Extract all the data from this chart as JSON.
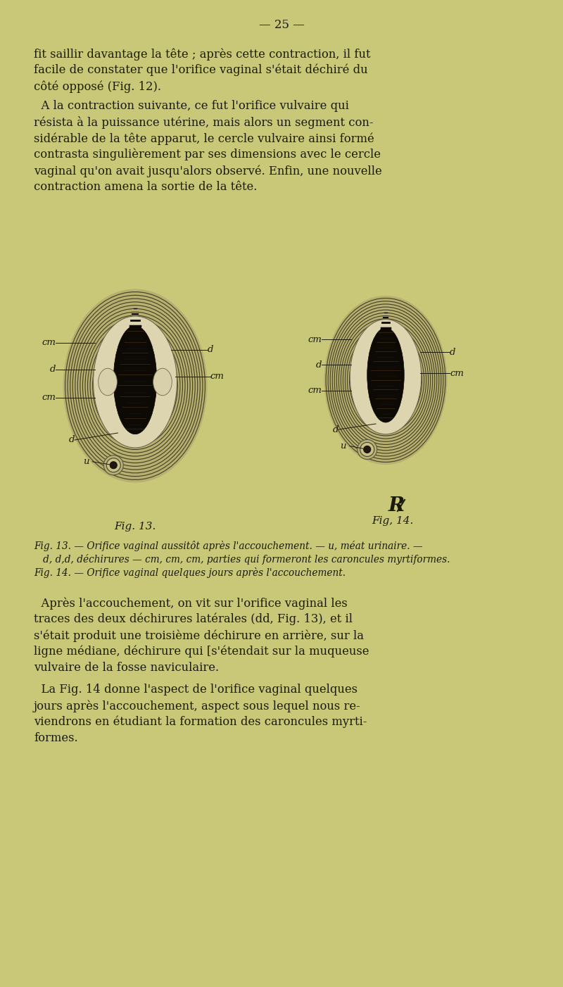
{
  "background_color": "#c8c878",
  "text_color": "#1a1a0a",
  "page_number_line": "— 25 —",
  "paragraph1_lines": [
    "fit saillir davantage la tête ; après cette contraction, il fut",
    "facile de constater que l'orifice vaginal s'était déchiré du",
    "côté opposé (Fig. 12)."
  ],
  "paragraph2_lines": [
    "  A la contraction suivante, ce fut l'orifice vulvaire qui",
    "résista à la puissance utérine, mais alors un segment con-",
    "sidérable de la tête apparut, le cercle vulvaire ainsi formé",
    "contrasta singulièrement par ses dimensions avec le cercle",
    "vaginal qu'on avait jusqu'alors observé. Enfin, une nouvelle",
    "contraction amena la sortie de la tête."
  ],
  "fig13_caption": "Fig. 13.",
  "fig14_caption": "Fig, 14.",
  "caption_lines": [
    "Fig. 13. — Orifice vaginal aussitôt après l'accouchement. — u, méat urinaire. —",
    "   d, d,d, déchirures — cm, cm, cm, parties qui formeront les caroncules myrtiformes.",
    "Fig. 14. — Orifice vaginal quelques jours après l'accouchement."
  ],
  "paragraph3_lines": [
    "  Après l'accouchement, on vit sur l'orifice vaginal les",
    "traces des deux déchirures latérales (dd, Fig. 13), et il",
    "s'était produit une troisième déchirure en arrière, sur la",
    "ligne médiane, déchirure qui [s'étendait sur la muqueuse",
    "vulvaire de la fosse naviculaire."
  ],
  "paragraph4_lines": [
    "  La Fig. 14 donne l'aspect de l'orifice vaginal quelques",
    "jours après l'accouchement, aspect sous lequel nous re-",
    "viendrons en étudiant la formation des caroncules myrti-",
    "formes."
  ]
}
